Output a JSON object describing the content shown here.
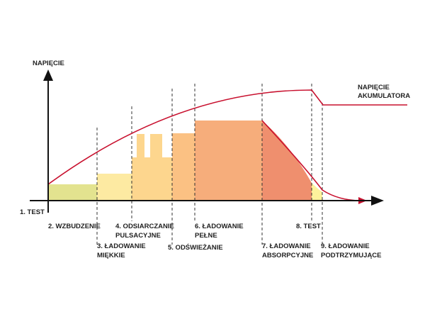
{
  "y_axis_label": "NAPIĘCIE",
  "battery_voltage_label": [
    "NAPIĘCIE",
    "AKUMULATORA"
  ],
  "stages": [
    {
      "lines": [
        "1. TEST"
      ]
    },
    {
      "lines": [
        "2. WZBUDZENIE"
      ]
    },
    {
      "lines": [
        "3. ŁADOWANIE",
        "MIĘKKIE"
      ]
    },
    {
      "lines": [
        "4. ODSIARCZANIE",
        "PULSACYJNE"
      ]
    },
    {
      "lines": [
        "5. ODŚWIEŻANIE"
      ]
    },
    {
      "lines": [
        "6. ŁADOWANIE",
        "PEŁNE"
      ]
    },
    {
      "lines": [
        "7. ŁADOWANIE",
        "ABSORPCYJNE"
      ]
    },
    {
      "lines": [
        "8. TEST"
      ]
    },
    {
      "lines": [
        "9. ŁADOWANIE",
        "PODTRZYMUJĄCE"
      ]
    }
  ]
}
